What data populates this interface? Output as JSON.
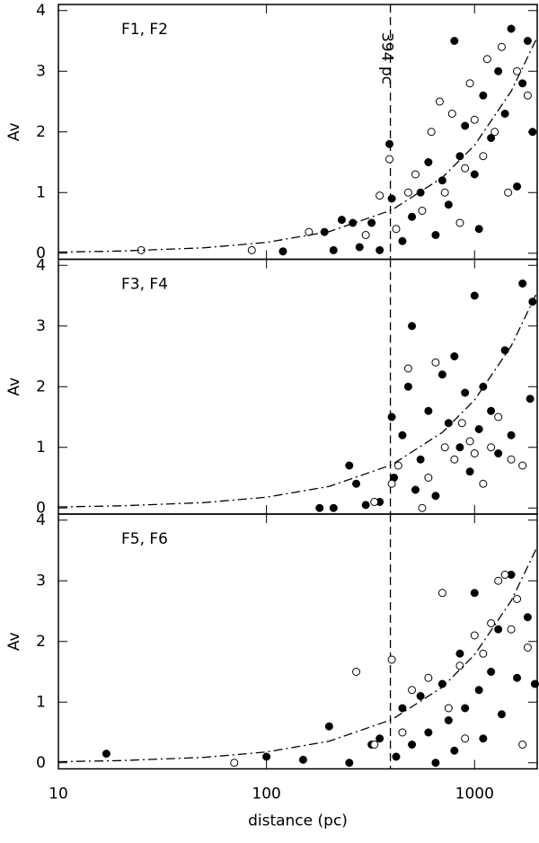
{
  "chart_data": [
    {
      "type": "scatter",
      "title": "F1, F2",
      "ylabel": "Av",
      "xlim": [
        10,
        2000
      ],
      "ylim": [
        -0.1,
        4.1
      ],
      "xscale": "log",
      "xticks": [
        10,
        100,
        1000
      ],
      "yticks": [
        0,
        1,
        2,
        3,
        4
      ],
      "vline": 394,
      "vline_label": "394 pc",
      "series": [
        {
          "marker": "filled",
          "color": "#000000",
          "x": [
            120,
            190,
            210,
            230,
            260,
            280,
            320,
            350,
            390,
            400,
            450,
            500,
            550,
            600,
            650,
            700,
            750,
            800,
            850,
            900,
            1000,
            1050,
            1100,
            1200,
            1300,
            1400,
            1500,
            1600,
            1700,
            1800,
            1900
          ],
          "values": [
            0.03,
            0.35,
            0.05,
            0.55,
            0.5,
            0.1,
            0.5,
            0.05,
            1.8,
            0.9,
            0.2,
            0.6,
            1.0,
            1.5,
            0.3,
            1.2,
            0.8,
            3.5,
            1.6,
            2.1,
            1.3,
            0.4,
            2.6,
            1.9,
            3.0,
            2.3,
            3.7,
            1.1,
            2.8,
            3.5,
            2.0
          ]
        },
        {
          "marker": "open",
          "color": "#000000",
          "x": [
            25,
            85,
            160,
            300,
            350,
            390,
            420,
            480,
            520,
            560,
            620,
            680,
            720,
            780,
            850,
            900,
            950,
            1000,
            1100,
            1150,
            1250,
            1350,
            1450,
            1600,
            1800
          ],
          "values": [
            0.05,
            0.05,
            0.35,
            0.3,
            0.95,
            1.55,
            0.4,
            1.0,
            1.3,
            0.7,
            2.0,
            2.5,
            1.0,
            2.3,
            0.5,
            1.4,
            2.8,
            2.2,
            1.6,
            3.2,
            2.0,
            3.4,
            1.0,
            3.0,
            2.6
          ]
        },
        {
          "marker": "line",
          "color": "#000000",
          "x": [
            10,
            20,
            50,
            100,
            200,
            400,
            700,
            1000,
            1500,
            2000
          ],
          "values": [
            0.018,
            0.036,
            0.089,
            0.178,
            0.356,
            0.712,
            1.246,
            1.78,
            2.67,
            3.56
          ]
        }
      ]
    },
    {
      "type": "scatter",
      "title": "F3, F4",
      "ylabel": "Av",
      "xlim": [
        10,
        2000
      ],
      "ylim": [
        -0.1,
        4.1
      ],
      "xscale": "log",
      "xticks": [
        10,
        100,
        1000
      ],
      "yticks": [
        0,
        1,
        2,
        3,
        4
      ],
      "vline": 394,
      "series": [
        {
          "marker": "filled",
          "color": "#000000",
          "x": [
            180,
            210,
            250,
            270,
            300,
            350,
            400,
            410,
            450,
            480,
            500,
            520,
            550,
            600,
            650,
            700,
            750,
            800,
            850,
            900,
            950,
            1000,
            1050,
            1100,
            1200,
            1300,
            1400,
            1500,
            1700,
            1900,
            1850
          ],
          "values": [
            0.0,
            0.0,
            0.7,
            0.4,
            0.05,
            0.1,
            1.5,
            0.5,
            1.2,
            2.0,
            3.0,
            0.3,
            0.8,
            1.6,
            0.2,
            2.2,
            1.4,
            2.5,
            1.0,
            1.9,
            0.6,
            3.5,
            1.3,
            2.0,
            1.6,
            0.9,
            2.6,
            1.2,
            3.7,
            3.4,
            1.8
          ]
        },
        {
          "marker": "open",
          "color": "#000000",
          "x": [
            330,
            400,
            430,
            480,
            560,
            600,
            650,
            720,
            800,
            870,
            950,
            1000,
            1100,
            1200,
            1300,
            1500,
            1700
          ],
          "values": [
            0.1,
            0.4,
            0.7,
            2.3,
            0.0,
            0.5,
            2.4,
            1.0,
            0.8,
            1.4,
            1.1,
            0.9,
            0.4,
            1.0,
            1.5,
            0.8,
            0.7
          ]
        },
        {
          "marker": "line",
          "color": "#000000",
          "x": [
            10,
            20,
            50,
            100,
            200,
            400,
            700,
            1000,
            1500,
            2000
          ],
          "values": [
            0.018,
            0.036,
            0.089,
            0.178,
            0.356,
            0.712,
            1.246,
            1.78,
            2.67,
            3.56
          ]
        }
      ]
    },
    {
      "type": "scatter",
      "title": "F5, F6",
      "ylabel": "Av",
      "xlabel": "distance (pc)",
      "xlim": [
        10,
        2000
      ],
      "ylim": [
        -0.1,
        4.1
      ],
      "xscale": "log",
      "xticks": [
        10,
        100,
        1000
      ],
      "yticks": [
        0,
        1,
        2,
        3,
        4
      ],
      "vline": 394,
      "series": [
        {
          "marker": "filled",
          "color": "#000000",
          "x": [
            17,
            100,
            150,
            200,
            250,
            320,
            350,
            420,
            450,
            500,
            550,
            600,
            650,
            700,
            750,
            800,
            850,
            900,
            1000,
            1050,
            1100,
            1200,
            1300,
            1350,
            1500,
            1600,
            1800,
            1950
          ],
          "values": [
            0.15,
            0.1,
            0.05,
            0.6,
            0.0,
            0.3,
            0.4,
            0.1,
            0.9,
            0.3,
            1.1,
            0.5,
            0.0,
            1.3,
            0.7,
            0.2,
            1.8,
            0.9,
            2.8,
            1.2,
            0.4,
            1.5,
            2.2,
            0.8,
            3.1,
            1.4,
            2.4,
            1.3
          ]
        },
        {
          "marker": "open",
          "color": "#000000",
          "x": [
            70,
            270,
            330,
            400,
            450,
            500,
            600,
            700,
            750,
            850,
            900,
            1000,
            1100,
            1200,
            1300,
            1400,
            1500,
            1600,
            1700,
            1800
          ],
          "values": [
            0.0,
            1.5,
            0.3,
            1.7,
            0.5,
            1.2,
            1.4,
            2.8,
            0.9,
            1.6,
            0.4,
            2.1,
            1.8,
            2.3,
            3.0,
            3.1,
            2.2,
            2.7,
            0.3,
            1.9
          ]
        },
        {
          "marker": "line",
          "color": "#000000",
          "x": [
            10,
            20,
            50,
            100,
            200,
            400,
            700,
            1000,
            1500,
            2000
          ],
          "values": [
            0.018,
            0.036,
            0.089,
            0.178,
            0.356,
            0.712,
            1.246,
            1.78,
            2.67,
            3.56
          ]
        }
      ]
    }
  ]
}
